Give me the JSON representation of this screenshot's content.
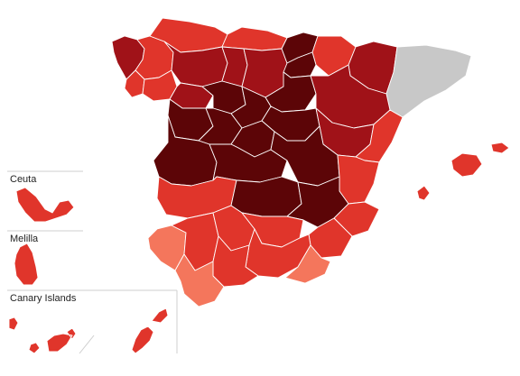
{
  "insets": {
    "ceuta_label": "Ceuta",
    "melilla_label": "Melilla",
    "canary_label": "Canary Islands"
  },
  "legend_scale": {
    "no_data": "#c8c8c8",
    "level_1": "#f4765c",
    "level_2": "#e0352b",
    "level_3": "#a01218",
    "level_4": "#5c0507"
  },
  "regions": [
    {
      "name": "A Coruña",
      "level": 3
    },
    {
      "name": "Lugo",
      "level": 2
    },
    {
      "name": "Pontevedra",
      "level": 2
    },
    {
      "name": "Ourense",
      "level": 2
    },
    {
      "name": "Asturias",
      "level": 2
    },
    {
      "name": "Cantabria",
      "level": 2
    },
    {
      "name": "León",
      "level": 3
    },
    {
      "name": "Palencia",
      "level": 3
    },
    {
      "name": "Burgos",
      "level": 3
    },
    {
      "name": "Basque Country",
      "level": 4
    },
    {
      "name": "Navarra",
      "level": 2
    },
    {
      "name": "La Rioja",
      "level": 4
    },
    {
      "name": "Zamora",
      "level": 3
    },
    {
      "name": "Valladolid",
      "level": 4
    },
    {
      "name": "Soria",
      "level": 4
    },
    {
      "name": "Salamanca",
      "level": 4
    },
    {
      "name": "Segovia",
      "level": 4
    },
    {
      "name": "Ávila",
      "level": 4
    },
    {
      "name": "Madrid",
      "level": 4
    },
    {
      "name": "Guadalajara",
      "level": 4
    },
    {
      "name": "Zaragoza",
      "level": 3
    },
    {
      "name": "Huesca",
      "level": 3
    },
    {
      "name": "Teruel",
      "level": 3
    },
    {
      "name": "Catalonia",
      "level": 0
    },
    {
      "name": "Cáceres",
      "level": 4
    },
    {
      "name": "Toledo",
      "level": 4
    },
    {
      "name": "Cuenca",
      "level": 4
    },
    {
      "name": "Castellón",
      "level": 2
    },
    {
      "name": "Valencia",
      "level": 2
    },
    {
      "name": "Badajoz",
      "level": 2
    },
    {
      "name": "Ciudad Real",
      "level": 4
    },
    {
      "name": "Albacete",
      "level": 4
    },
    {
      "name": "Alicante",
      "level": 2
    },
    {
      "name": "Murcia",
      "level": 2
    },
    {
      "name": "Huelva",
      "level": 1
    },
    {
      "name": "Sevilla",
      "level": 2
    },
    {
      "name": "Córdoba",
      "level": 2
    },
    {
      "name": "Jaén",
      "level": 2
    },
    {
      "name": "Granada",
      "level": 2
    },
    {
      "name": "Almería",
      "level": 1
    },
    {
      "name": "Cádiz",
      "level": 1
    },
    {
      "name": "Málaga",
      "level": 2
    },
    {
      "name": "Balearic Islands",
      "level": 2
    },
    {
      "name": "Ceuta",
      "level": 2
    },
    {
      "name": "Melilla",
      "level": 2
    },
    {
      "name": "Canary Islands",
      "level": 2
    }
  ]
}
